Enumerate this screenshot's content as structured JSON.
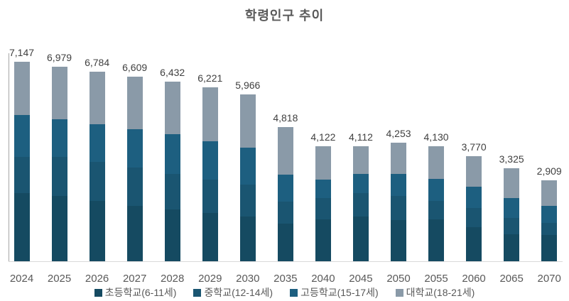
{
  "chart_data": {
    "type": "bar",
    "stacked": true,
    "title": "학령인구 추이",
    "categories": [
      "2024",
      "2025",
      "2026",
      "2027",
      "2028",
      "2029",
      "2030",
      "2035",
      "2040",
      "2045",
      "2050",
      "2055",
      "2060",
      "2065",
      "2070"
    ],
    "series": [
      {
        "name": "초등학교(6-11세)",
        "color": "#154a61",
        "values": [
          2451,
          2343,
          2168,
          1990,
          1856,
          1734,
          1606,
          1358,
          1510,
          1599,
          1477,
          1488,
          1231,
          965,
          944
        ]
      },
      {
        "name": "중학교(12-14세)",
        "color": "#1a5571",
        "values": [
          1276,
          1401,
          1403,
          1378,
          1271,
          1198,
          1147,
          769,
          742,
          838,
          866,
          667,
          667,
          584,
          434
        ]
      },
      {
        "name": "고등학교(15-17세)",
        "color": "#1d5f80",
        "values": [
          1506,
          1350,
          1326,
          1353,
          1424,
          1377,
          1326,
          974,
          666,
          685,
          790,
          795,
          769,
          711,
          612
        ]
      },
      {
        "name": "대학교(18-21세)",
        "color": "#8a9aa8",
        "values": [
          1914,
          1885,
          1887,
          1888,
          1881,
          1912,
          1887,
          1717,
          1204,
          990,
          1120,
          1180,
          1103,
          1065,
          919
        ]
      }
    ],
    "totals": [
      7147,
      6979,
      6784,
      6609,
      6432,
      6221,
      5966,
      4818,
      4122,
      4112,
      4253,
      4130,
      3770,
      3325,
      2909
    ],
    "total_labels": [
      "7,147",
      "6,979",
      "6,784",
      "6,609",
      "6,432",
      "6,221",
      "5,966",
      "4,818",
      "4,122",
      "4,112",
      "4,253",
      "4,130",
      "3,770",
      "3,325",
      "2,909"
    ],
    "xlabel": "",
    "ylabel": "",
    "ylim": [
      0,
      7400
    ],
    "grid": false,
    "legend_position": "bottom",
    "axis_colors": {
      "y_axis": "#a6a6a6",
      "x_axis": "#d9d9d9"
    },
    "label_color": "#404040",
    "tick_color": "#595959",
    "title_color": "#595959"
  }
}
